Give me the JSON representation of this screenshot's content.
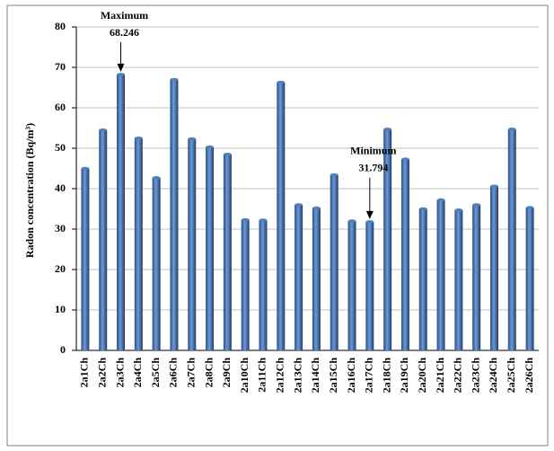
{
  "chart_data": {
    "type": "bar",
    "y_label": "Radon concentration  (Bq/m³)",
    "categories": [
      "2a1Ch",
      "2a2Ch",
      "2a3Ch",
      "2a4Ch",
      "2a5Ch",
      "2a6Ch",
      "2a7Ch",
      "2a8Ch",
      "2a9Ch",
      "2a10Ch",
      "2a11Ch",
      "2a12Ch",
      "2a13Ch",
      "2a14Ch",
      "2a15Ch",
      "2a16Ch",
      "2a17Ch",
      "2a18Ch",
      "2a19Ch",
      "2a20Ch",
      "2a21Ch",
      "2a22Ch",
      "2a23Ch",
      "2a24Ch",
      "2a25Ch",
      "2a26Ch"
    ],
    "values": [
      45,
      54.5,
      68.246,
      52.5,
      42.7,
      67,
      52.3,
      50.3,
      48.5,
      32.3,
      32.2,
      66.3,
      36,
      35.2,
      43.4,
      32,
      31.794,
      54.7,
      47.3,
      35,
      37.2,
      34.7,
      36,
      40.6,
      54.7,
      35.3
    ],
    "color": "#4f81bd",
    "ylim": [
      0,
      80
    ],
    "yticks": [
      0,
      10,
      20,
      30,
      40,
      50,
      60,
      70,
      80
    ],
    "grid": true,
    "annotations": [
      {
        "text": "Maximum",
        "value": 68.246
      },
      {
        "text": "Minimum",
        "value": 31.794
      }
    ]
  }
}
